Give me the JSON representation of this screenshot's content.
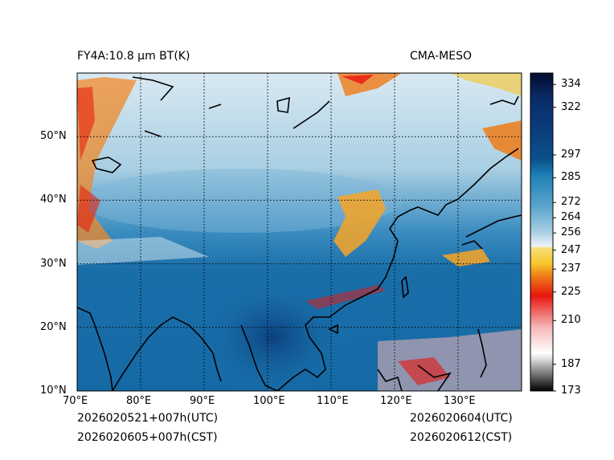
{
  "header": {
    "product_title": "FY4A:10.8 µm BT(K)",
    "model_name": "CMA-MESO"
  },
  "map": {
    "lon_range": [
      70,
      140
    ],
    "lat_range": [
      10,
      60
    ],
    "lon_ticks": [
      "70°E",
      "80°E",
      "90°E",
      "100°E",
      "110°E",
      "120°E",
      "130°E"
    ],
    "lat_ticks": [
      "10°N",
      "20°N",
      "30°N",
      "40°N",
      "50°N"
    ]
  },
  "colorbar": {
    "unit": "K",
    "range": [
      173,
      340
    ],
    "tick_labels": [
      "334",
      "322",
      "297",
      "285",
      "272",
      "264",
      "256",
      "247",
      "237",
      "225",
      "210",
      "187",
      "173"
    ],
    "colors": {
      "deep_navy": "#071a4e",
      "dark_blue": "#0b4f8a",
      "mid_blue": "#1d7fb5",
      "light_blue": "#a9cfe3",
      "near_white": "#eef4f8",
      "yellow": "#f7c52a",
      "orange": "#ef7b18",
      "red": "#e8150f",
      "pink": "#f4b7b7",
      "gray": "#9a9a9a",
      "black": "#000000"
    }
  },
  "footer": {
    "init_utc": "2026020521+007h(UTC)",
    "init_cst": "2026020605+007h(CST)",
    "valid_utc": "2026020604(UTC)",
    "valid_cst": "2026020612(CST)"
  }
}
